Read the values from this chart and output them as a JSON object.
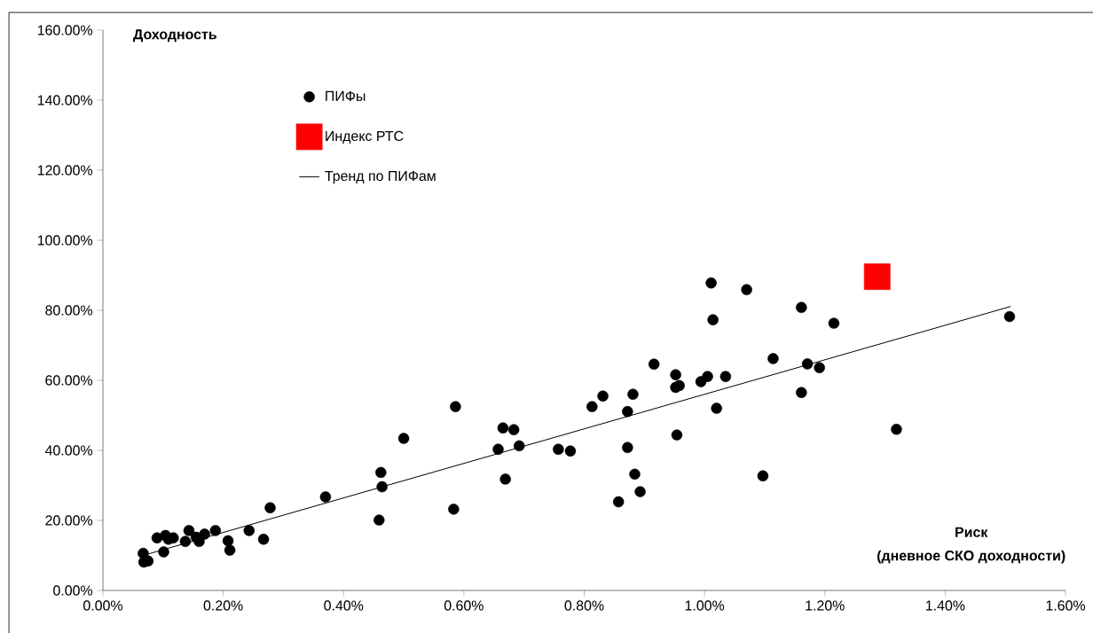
{
  "chart_data": {
    "type": "scatter",
    "ylabel": "Доходность",
    "xlabel": "Риск",
    "annotations": [
      "(дневное СКО доходности)"
    ],
    "legend": "top left",
    "xlim": [
      0,
      1.6
    ],
    "ylim": [
      0,
      160
    ],
    "xticks": [
      {
        "value": 0,
        "label": "0.00%"
      },
      {
        "value": 0.2,
        "label": "0.20%"
      },
      {
        "value": 0.4,
        "label": "0.40%"
      },
      {
        "value": 0.6,
        "label": "0.60%"
      },
      {
        "value": 0.8,
        "label": "0.80%"
      },
      {
        "value": 1.0,
        "label": "1.00%"
      },
      {
        "value": 1.2,
        "label": "1.20%"
      },
      {
        "value": 1.4,
        "label": "1.40%"
      },
      {
        "value": 1.6,
        "label": "1.60%"
      }
    ],
    "yticks": [
      {
        "value": 0,
        "label": "0.00%"
      },
      {
        "value": 20,
        "label": "20.00%"
      },
      {
        "value": 40,
        "label": "40.00%"
      },
      {
        "value": 60,
        "label": "60.00%"
      },
      {
        "value": 80,
        "label": "80.00%"
      },
      {
        "value": 100,
        "label": "100.00%"
      },
      {
        "value": 120,
        "label": "120.00%"
      },
      {
        "value": 140,
        "label": "140.00%"
      },
      {
        "value": 160,
        "label": "160.00%"
      }
    ],
    "series": [
      {
        "name": "ПИФы",
        "marker": "circle",
        "color": "#000000",
        "x": [
          0.067,
          0.068,
          0.075,
          0.09,
          0.101,
          0.104,
          0.109,
          0.117,
          0.137,
          0.143,
          0.155,
          0.16,
          0.169,
          0.187,
          0.208,
          0.211,
          0.243,
          0.267,
          0.278,
          0.37,
          0.459,
          0.464,
          0.462,
          0.5,
          0.583,
          0.586,
          0.657,
          0.665,
          0.669,
          0.683,
          0.692,
          0.757,
          0.777,
          0.813,
          0.831,
          0.857,
          0.872,
          0.872,
          0.881,
          0.884,
          0.893,
          0.916,
          1.011,
          1.07,
          1.014,
          1.161,
          1.215,
          0.952,
          0.952,
          0.958,
          0.994,
          1.005,
          1.035,
          1.02,
          0.954,
          1.114,
          1.171,
          1.191,
          1.161,
          1.097,
          1.319,
          1.507
        ],
        "values": [
          10.6,
          8.1,
          8.4,
          15.0,
          11.0,
          15.7,
          14.6,
          15.0,
          14.0,
          17.1,
          15.2,
          14.0,
          16.1,
          17.1,
          14.2,
          11.5,
          17.1,
          14.6,
          23.6,
          26.7,
          20.1,
          29.6,
          33.7,
          43.4,
          23.2,
          52.5,
          40.3,
          46.4,
          31.8,
          45.9,
          41.3,
          40.3,
          39.8,
          52.5,
          55.5,
          25.3,
          51.1,
          40.8,
          56.0,
          33.2,
          28.2,
          64.6,
          87.8,
          85.9,
          77.3,
          80.8,
          76.3,
          61.6,
          58.0,
          58.5,
          59.6,
          61.1,
          61.1,
          52.0,
          44.4,
          66.2,
          64.7,
          63.6,
          56.5,
          32.7,
          46.0,
          78.2
        ]
      },
      {
        "name": "Индекс РТС",
        "type": "scatter",
        "marker": "square",
        "color": "#ff0000",
        "x": [
          1.287
        ],
        "values": [
          89.6
        ]
      },
      {
        "name": "Тренд по ПИФам",
        "type": "line",
        "marker": "none",
        "color": "#000000",
        "x": [
          0.075,
          1.509
        ],
        "values": [
          10.4,
          81.1
        ]
      }
    ]
  }
}
